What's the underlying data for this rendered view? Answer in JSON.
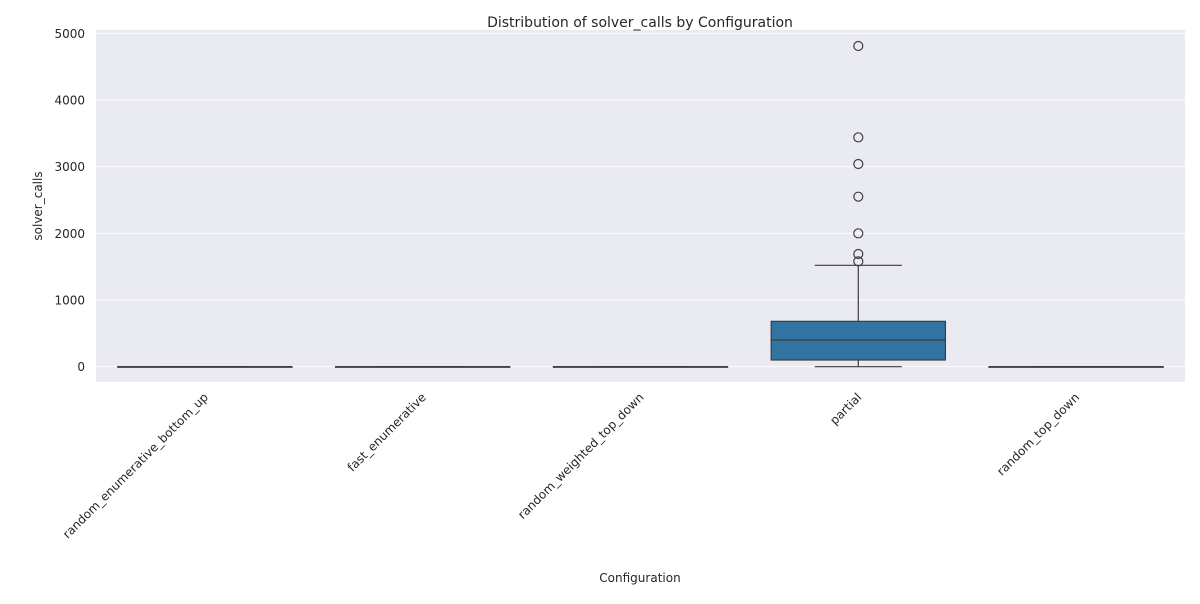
{
  "chart_data": {
    "type": "box",
    "title": "Distribution of solver_calls by Configuration",
    "xlabel": "Configuration",
    "ylabel": "solver_calls",
    "ylim": [
      -230,
      5050
    ],
    "yticks": [
      0,
      1000,
      2000,
      3000,
      4000,
      5000
    ],
    "grid": true,
    "style": {
      "plot_background": "#eaeaf2",
      "grid_color": "#ffffff",
      "box_fill": "#3274a1",
      "line_color": "#3d3d3d"
    },
    "categories": [
      "random_enumerative_bottom_up",
      "fast_enumerative",
      "random_weighted_top_down",
      "partial",
      "random_top_down"
    ],
    "series": [
      {
        "boxes": [
          {
            "whisker_low": 0,
            "q1": 0,
            "median": 0,
            "q3": 0,
            "whisker_high": 0,
            "outliers": []
          },
          {
            "whisker_low": 0,
            "q1": 0,
            "median": 0,
            "q3": 0,
            "whisker_high": 0,
            "outliers": []
          },
          {
            "whisker_low": 0,
            "q1": 0,
            "median": 0,
            "q3": 0,
            "whisker_high": 0,
            "outliers": []
          },
          {
            "whisker_low": 0,
            "q1": 100,
            "median": 400,
            "q3": 680,
            "whisker_high": 1520,
            "outliers": [
              1580,
              1690,
              2000,
              2550,
              3040,
              3440,
              4810
            ]
          },
          {
            "whisker_low": 0,
            "q1": 0,
            "median": 0,
            "q3": 0,
            "whisker_high": 0,
            "outliers": []
          }
        ]
      }
    ]
  }
}
